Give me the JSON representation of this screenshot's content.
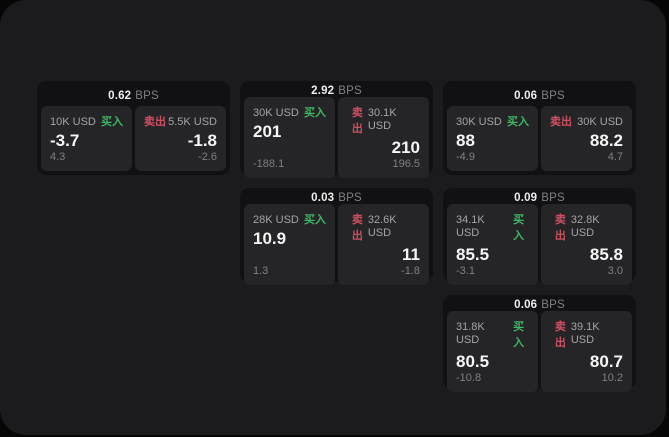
{
  "page": {
    "bps_unit": "BPS",
    "buy_label": "买入",
    "sell_label": "卖出",
    "colors": {
      "surface_bg": "#1b1b1d",
      "card_bg": "#111113",
      "panel_bg": "#252528",
      "buy_green": "#3eb762",
      "sell_red": "#cc4f62"
    }
  },
  "cards": [
    {
      "bps": "0.62",
      "buy": {
        "amount": "10K USD",
        "value": "-3.7",
        "sub": "4.3"
      },
      "sell": {
        "amount": "5.5K USD",
        "value": "-1.8",
        "sub": "-2.6"
      }
    },
    {
      "bps": "2.92",
      "buy": {
        "amount": "30K USD",
        "value": "201",
        "sub": "-188.1"
      },
      "sell": {
        "amount": "30.1K USD",
        "value": "210",
        "sub": "196.5"
      }
    },
    {
      "bps": "0.06",
      "buy": {
        "amount": "30K USD",
        "value": "88",
        "sub": "-4.9"
      },
      "sell": {
        "amount": "30K USD",
        "value": "88.2",
        "sub": "4.7"
      }
    },
    {
      "bps": "0.03",
      "buy": {
        "amount": "28K USD",
        "value": "10.9",
        "sub": "1.3"
      },
      "sell": {
        "amount": "32.6K USD",
        "value": "11",
        "sub": "-1.8"
      }
    },
    {
      "bps": "0.09",
      "buy": {
        "amount": "34.1K USD",
        "value": "85.5",
        "sub": "-3.1"
      },
      "sell": {
        "amount": "32.8K USD",
        "value": "85.8",
        "sub": "3.0"
      }
    },
    {
      "bps": "0.06",
      "buy": {
        "amount": "31.8K USD",
        "value": "80.5",
        "sub": "-10.8"
      },
      "sell": {
        "amount": "39.1K USD",
        "value": "80.7",
        "sub": "10.2"
      }
    }
  ]
}
